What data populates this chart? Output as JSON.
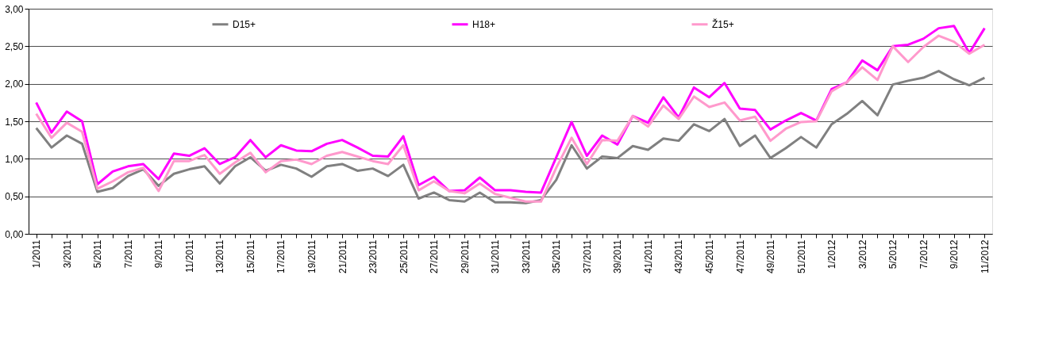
{
  "chart_data": {
    "type": "line",
    "categories": [
      "1/2011",
      null,
      "3/2011",
      null,
      "5/2011",
      null,
      "7/2011",
      null,
      "9/2011",
      null,
      "11/2011",
      null,
      "13/2011",
      null,
      "15/2011",
      null,
      "17/2011",
      null,
      "19/2011",
      null,
      "21/2011",
      null,
      "23/2011",
      null,
      "25/2011",
      null,
      "27/2011",
      null,
      "29/2011",
      null,
      "31/2011",
      null,
      "33/2011",
      null,
      "35/2011",
      null,
      "37/2011",
      null,
      "39/2011",
      null,
      "41/2011",
      null,
      "43/2011",
      null,
      "45/2011",
      null,
      "47/2011",
      null,
      "49/2011",
      null,
      "51/2011",
      null,
      "1/2012",
      null,
      "3/2012",
      null,
      "5/2012",
      null,
      "7/2012",
      null,
      "9/2012",
      null,
      "11/2012"
    ],
    "series": [
      {
        "name": "D15+",
        "color": "#808080",
        "values": [
          1.41,
          1.15,
          1.31,
          1.2,
          0.56,
          0.61,
          0.77,
          0.86,
          0.64,
          0.8,
          0.86,
          0.9,
          0.67,
          0.9,
          1.02,
          0.84,
          0.92,
          0.87,
          0.76,
          0.9,
          0.93,
          0.84,
          0.87,
          0.77,
          0.92,
          0.47,
          0.55,
          0.45,
          0.43,
          0.55,
          0.42,
          0.42,
          0.41,
          0.45,
          0.72,
          1.18,
          0.87,
          1.03,
          1.01,
          1.17,
          1.12,
          1.27,
          1.24,
          1.46,
          1.37,
          1.53,
          1.17,
          1.31,
          1.01,
          1.14,
          1.29,
          1.15,
          1.46,
          1.6,
          1.77,
          1.58,
          1.99,
          2.04,
          2.08,
          2.17,
          2.06,
          1.98,
          2.08
        ]
      },
      {
        "name": "H18+",
        "color": "#ff00ff",
        "values": [
          1.75,
          1.35,
          1.63,
          1.5,
          0.66,
          0.83,
          0.9,
          0.93,
          0.73,
          1.07,
          1.04,
          1.14,
          0.93,
          1.02,
          1.25,
          1.02,
          1.18,
          1.11,
          1.1,
          1.2,
          1.25,
          1.15,
          1.04,
          1.03,
          1.3,
          0.65,
          0.76,
          0.57,
          0.58,
          0.75,
          0.58,
          0.58,
          0.56,
          0.55,
          1.02,
          1.49,
          1.04,
          1.31,
          1.19,
          1.57,
          1.48,
          1.82,
          1.55,
          1.95,
          1.82,
          2.01,
          1.67,
          1.65,
          1.39,
          1.51,
          1.61,
          1.51,
          1.93,
          2.02,
          2.31,
          2.18,
          2.5,
          2.52,
          2.6,
          2.74,
          2.77,
          2.41,
          2.74
        ]
      },
      {
        "name": "Ž15+",
        "color": "#ff99cc",
        "values": [
          1.6,
          1.28,
          1.48,
          1.36,
          0.6,
          0.7,
          0.82,
          0.88,
          0.57,
          0.97,
          0.97,
          1.05,
          0.8,
          0.95,
          1.08,
          0.82,
          0.97,
          0.99,
          0.93,
          1.04,
          1.09,
          1.03,
          0.97,
          0.93,
          1.18,
          0.58,
          0.7,
          0.57,
          0.54,
          0.67,
          0.53,
          0.48,
          0.43,
          0.43,
          0.88,
          1.28,
          0.93,
          1.25,
          1.24,
          1.57,
          1.43,
          1.71,
          1.53,
          1.83,
          1.69,
          1.75,
          1.51,
          1.56,
          1.24,
          1.4,
          1.49,
          1.5,
          1.9,
          2.02,
          2.22,
          2.05,
          2.5,
          2.29,
          2.49,
          2.64,
          2.56,
          2.4,
          2.52
        ]
      }
    ],
    "ylim": [
      0,
      3
    ],
    "yticks": [
      {
        "value": 0,
        "label": "0,00"
      },
      {
        "value": 0.5,
        "label": "0,50"
      },
      {
        "value": 1,
        "label": "1,00"
      },
      {
        "value": 1.5,
        "label": "1,50"
      },
      {
        "value": 2,
        "label": "2,00"
      },
      {
        "value": 2.5,
        "label": "2,50"
      },
      {
        "value": 3,
        "label": "3,00"
      }
    ],
    "grid": "y",
    "legend": "top",
    "marker": "none",
    "line_style": "solid"
  }
}
